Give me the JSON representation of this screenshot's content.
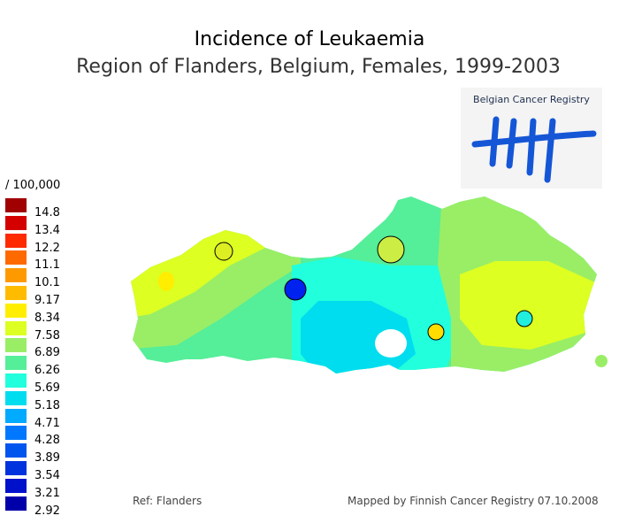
{
  "title": "Incidence of Leukaemia",
  "subtitle": "Region of Flanders, Belgium, Females, 1999-2003",
  "logo": {
    "text": "Belgian Cancer Registry",
    "color": "#1556d6"
  },
  "legend": {
    "unit": "/ 100,000",
    "items": [
      {
        "label": "14.8",
        "color": "#a00000"
      },
      {
        "label": "13.4",
        "color": "#d40000"
      },
      {
        "label": "12.2",
        "color": "#ff2a00"
      },
      {
        "label": "11.1",
        "color": "#ff6a00"
      },
      {
        "label": "10.1",
        "color": "#ff9900"
      },
      {
        "label": "9.17",
        "color": "#ffbb00"
      },
      {
        "label": "8.34",
        "color": "#ffee00"
      },
      {
        "label": "7.58",
        "color": "#ddff22"
      },
      {
        "label": "6.89",
        "color": "#99ee66"
      },
      {
        "label": "6.26",
        "color": "#55ee99"
      },
      {
        "label": "5.69",
        "color": "#22ffdd"
      },
      {
        "label": "5.18",
        "color": "#00ddee"
      },
      {
        "label": "4.71",
        "color": "#00aaff"
      },
      {
        "label": "4.28",
        "color": "#0077ff"
      },
      {
        "label": "3.89",
        "color": "#0055ee"
      },
      {
        "label": "3.54",
        "color": "#0033dd"
      },
      {
        "label": "3.21",
        "color": "#0011cc"
      },
      {
        "label": "2.92",
        "color": "#0000aa"
      }
    ]
  },
  "map": {
    "region": "Flanders",
    "circles": [
      {
        "color": "#ddee22"
      },
      {
        "color": "#ccee44"
      },
      {
        "color": "#0022ee"
      },
      {
        "color": "#ffdd00"
      },
      {
        "color": "#22eedd"
      }
    ]
  },
  "footer": {
    "ref": "Ref: Flanders",
    "mapped": "Mapped by Finnish Cancer Registry 07.10.2008"
  }
}
